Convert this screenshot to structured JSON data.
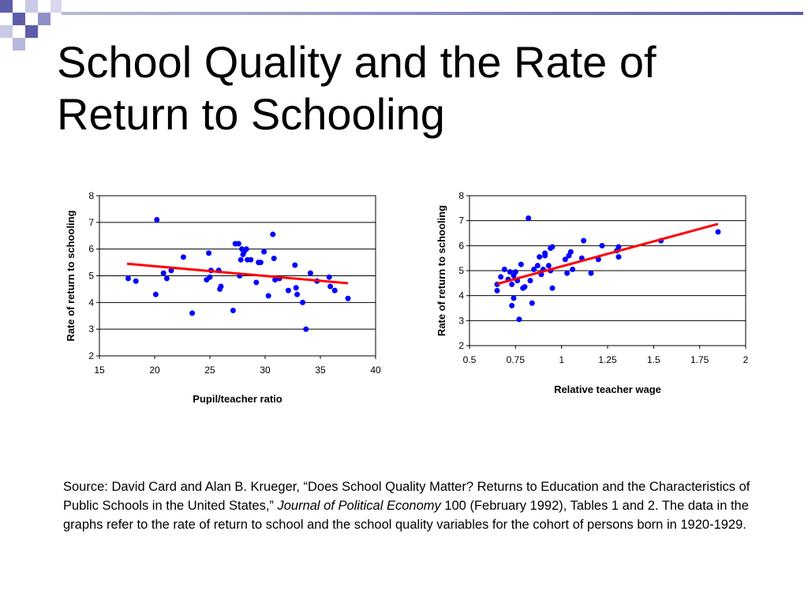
{
  "slide": {
    "title": "School Quality and the Rate of Return to Schooling",
    "source": {
      "part1": "Source: David Card and Alan B. Krueger, “Does School Quality Matter? Returns to Education and the Characteristics of Public Schools in the United States,” ",
      "journal": "Journal of Political Economy",
      "part2": " 100 (February 1992), Tables 1 and 2. The data in the graphs refer to the rate of return to school and the school quality variables for the cohort of persons born in 1920-1929."
    },
    "colors": {
      "title_bar_light": "#b7b8dc",
      "title_bar_dark": "#5c5ea9",
      "points": "#0000ff",
      "trend": "#ff0000"
    }
  },
  "chart_data": [
    {
      "type": "scatter",
      "title": "",
      "xlabel": "Pupil/teacher ratio",
      "ylabel": "Rate of return to schooling",
      "xlim": [
        15,
        40
      ],
      "ylim": [
        2,
        8
      ],
      "xticks": [
        "15",
        "20",
        "25",
        "30",
        "35",
        "40"
      ],
      "yticks": [
        "2",
        "3",
        "4",
        "5",
        "6",
        "7",
        "8"
      ],
      "grid": "horizontal",
      "points": [
        [
          17.6,
          4.9
        ],
        [
          18.3,
          4.8
        ],
        [
          20.1,
          4.3
        ],
        [
          20.2,
          7.1
        ],
        [
          20.8,
          5.1
        ],
        [
          21.1,
          4.9
        ],
        [
          21.5,
          5.2
        ],
        [
          22.6,
          5.7
        ],
        [
          23.4,
          3.6
        ],
        [
          24.7,
          4.85
        ],
        [
          24.9,
          5.85
        ],
        [
          25.0,
          4.95
        ],
        [
          25.1,
          5.2
        ],
        [
          25.8,
          5.2
        ],
        [
          25.9,
          4.5
        ],
        [
          26.0,
          4.6
        ],
        [
          27.1,
          3.7
        ],
        [
          27.3,
          6.2
        ],
        [
          27.6,
          6.2
        ],
        [
          27.7,
          5.0
        ],
        [
          27.8,
          5.6
        ],
        [
          27.9,
          6.0
        ],
        [
          28.0,
          5.8
        ],
        [
          28.1,
          5.9
        ],
        [
          28.3,
          6.0
        ],
        [
          28.4,
          5.6
        ],
        [
          28.7,
          5.6
        ],
        [
          29.2,
          4.75
        ],
        [
          29.4,
          5.5
        ],
        [
          29.6,
          5.5
        ],
        [
          29.9,
          5.9
        ],
        [
          30.3,
          4.25
        ],
        [
          30.7,
          6.55
        ],
        [
          30.8,
          5.65
        ],
        [
          30.9,
          4.85
        ],
        [
          31.3,
          4.9
        ],
        [
          32.1,
          4.45
        ],
        [
          32.7,
          5.4
        ],
        [
          32.8,
          4.55
        ],
        [
          32.9,
          4.3
        ],
        [
          33.4,
          4.0
        ],
        [
          33.7,
          3.0
        ],
        [
          34.1,
          5.1
        ],
        [
          34.7,
          4.8
        ],
        [
          35.8,
          4.95
        ],
        [
          35.9,
          4.6
        ],
        [
          36.3,
          4.45
        ],
        [
          37.5,
          4.15
        ]
      ],
      "trend_line": {
        "x": [
          17.5,
          37.5
        ],
        "y": [
          5.45,
          4.72
        ]
      }
    },
    {
      "type": "scatter",
      "title": "",
      "xlabel": "Relative teacher wage",
      "ylabel": "Rate of return to schooling",
      "xlim": [
        0.5,
        2
      ],
      "ylim": [
        2,
        8
      ],
      "xticks": [
        "0.5",
        "0.75",
        "1",
        "1.25",
        "1.5",
        "1.75",
        "2"
      ],
      "yticks": [
        "2",
        "3",
        "4",
        "5",
        "6",
        "7",
        "8"
      ],
      "grid": "horizontal",
      "points": [
        [
          0.65,
          4.2
        ],
        [
          0.65,
          4.45
        ],
        [
          0.67,
          4.75
        ],
        [
          0.69,
          5.05
        ],
        [
          0.71,
          4.65
        ],
        [
          0.72,
          4.95
        ],
        [
          0.73,
          3.6
        ],
        [
          0.73,
          4.45
        ],
        [
          0.74,
          3.9
        ],
        [
          0.74,
          4.8
        ],
        [
          0.75,
          4.95
        ],
        [
          0.76,
          4.6
        ],
        [
          0.77,
          3.05
        ],
        [
          0.78,
          5.25
        ],
        [
          0.79,
          4.3
        ],
        [
          0.8,
          4.35
        ],
        [
          0.82,
          7.1
        ],
        [
          0.83,
          4.6
        ],
        [
          0.84,
          3.7
        ],
        [
          0.85,
          5.05
        ],
        [
          0.87,
          5.2
        ],
        [
          0.88,
          5.55
        ],
        [
          0.89,
          4.85
        ],
        [
          0.9,
          5.05
        ],
        [
          0.91,
          5.6
        ],
        [
          0.91,
          5.7
        ],
        [
          0.93,
          5.2
        ],
        [
          0.94,
          5.0
        ],
        [
          0.94,
          5.9
        ],
        [
          0.95,
          4.3
        ],
        [
          0.95,
          5.95
        ],
        [
          1.02,
          5.45
        ],
        [
          1.03,
          4.9
        ],
        [
          1.04,
          5.6
        ],
        [
          1.05,
          5.75
        ],
        [
          1.06,
          5.05
        ],
        [
          1.11,
          5.5
        ],
        [
          1.12,
          6.2
        ],
        [
          1.16,
          4.9
        ],
        [
          1.2,
          5.45
        ],
        [
          1.22,
          6.0
        ],
        [
          1.3,
          5.8
        ],
        [
          1.31,
          5.95
        ],
        [
          1.31,
          5.55
        ],
        [
          1.54,
          6.2
        ],
        [
          1.85,
          6.55
        ]
      ],
      "trend_line": {
        "x": [
          0.65,
          1.85
        ],
        "y": [
          4.47,
          6.87
        ]
      }
    }
  ]
}
